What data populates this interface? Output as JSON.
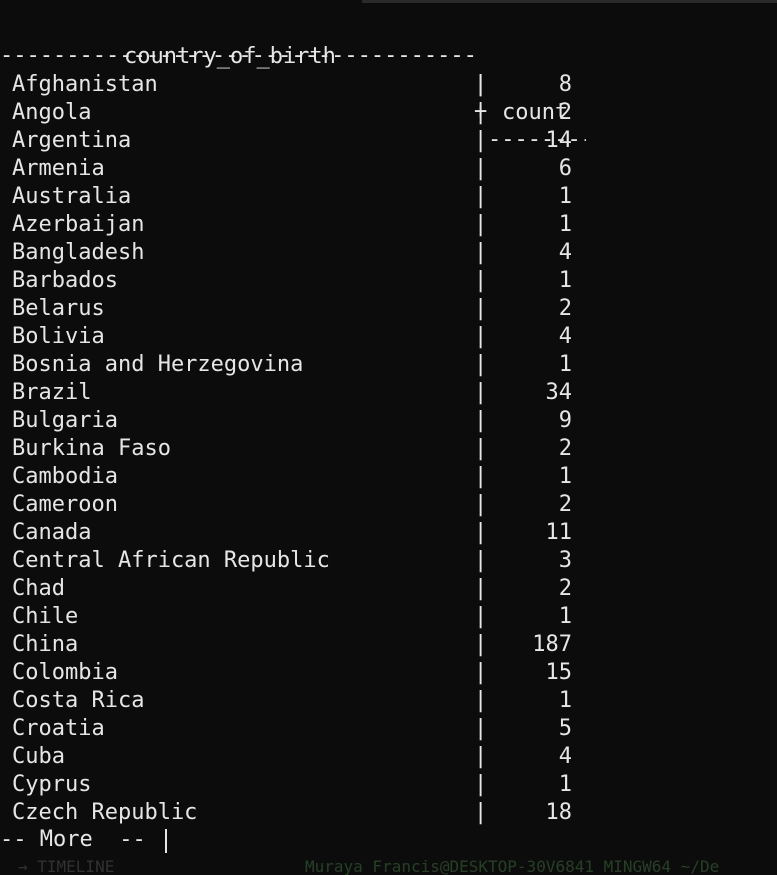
{
  "terminal": {
    "header": {
      "col_name": "country_of_birth",
      "col_count": "count",
      "pipe": "|"
    },
    "separator": {
      "left": "--------------------------------------------------------------",
      "plus": "+",
      "right": "--------------------------"
    },
    "rows": [
      {
        "name": "Afghanistan",
        "count": "8"
      },
      {
        "name": "Angola",
        "count": "2"
      },
      {
        "name": "Argentina",
        "count": "14"
      },
      {
        "name": "Armenia",
        "count": "6"
      },
      {
        "name": "Australia",
        "count": "1"
      },
      {
        "name": "Azerbaijan",
        "count": "1"
      },
      {
        "name": "Bangladesh",
        "count": "4"
      },
      {
        "name": "Barbados",
        "count": "1"
      },
      {
        "name": "Belarus",
        "count": "2"
      },
      {
        "name": "Bolivia",
        "count": "4"
      },
      {
        "name": "Bosnia and Herzegovina",
        "count": "1"
      },
      {
        "name": "Brazil",
        "count": "34"
      },
      {
        "name": "Bulgaria",
        "count": "9"
      },
      {
        "name": "Burkina Faso",
        "count": "2"
      },
      {
        "name": "Cambodia",
        "count": "1"
      },
      {
        "name": "Cameroon",
        "count": "2"
      },
      {
        "name": "Canada",
        "count": "11"
      },
      {
        "name": "Central African Republic",
        "count": "3"
      },
      {
        "name": "Chad",
        "count": "2"
      },
      {
        "name": "Chile",
        "count": "1"
      },
      {
        "name": "China",
        "count": "187"
      },
      {
        "name": "Colombia",
        "count": "15"
      },
      {
        "name": "Costa Rica",
        "count": "1"
      },
      {
        "name": "Croatia",
        "count": "5"
      },
      {
        "name": "Cuba",
        "count": "4"
      },
      {
        "name": "Cyprus",
        "count": "1"
      },
      {
        "name": "Czech Republic",
        "count": "18"
      }
    ],
    "pager_prompt": "-- More  --",
    "behind_left": "→ TIMELINE",
    "behind_right": "Muraya Francis@DESKTOP-30V6841 MINGW64 ~/De"
  }
}
